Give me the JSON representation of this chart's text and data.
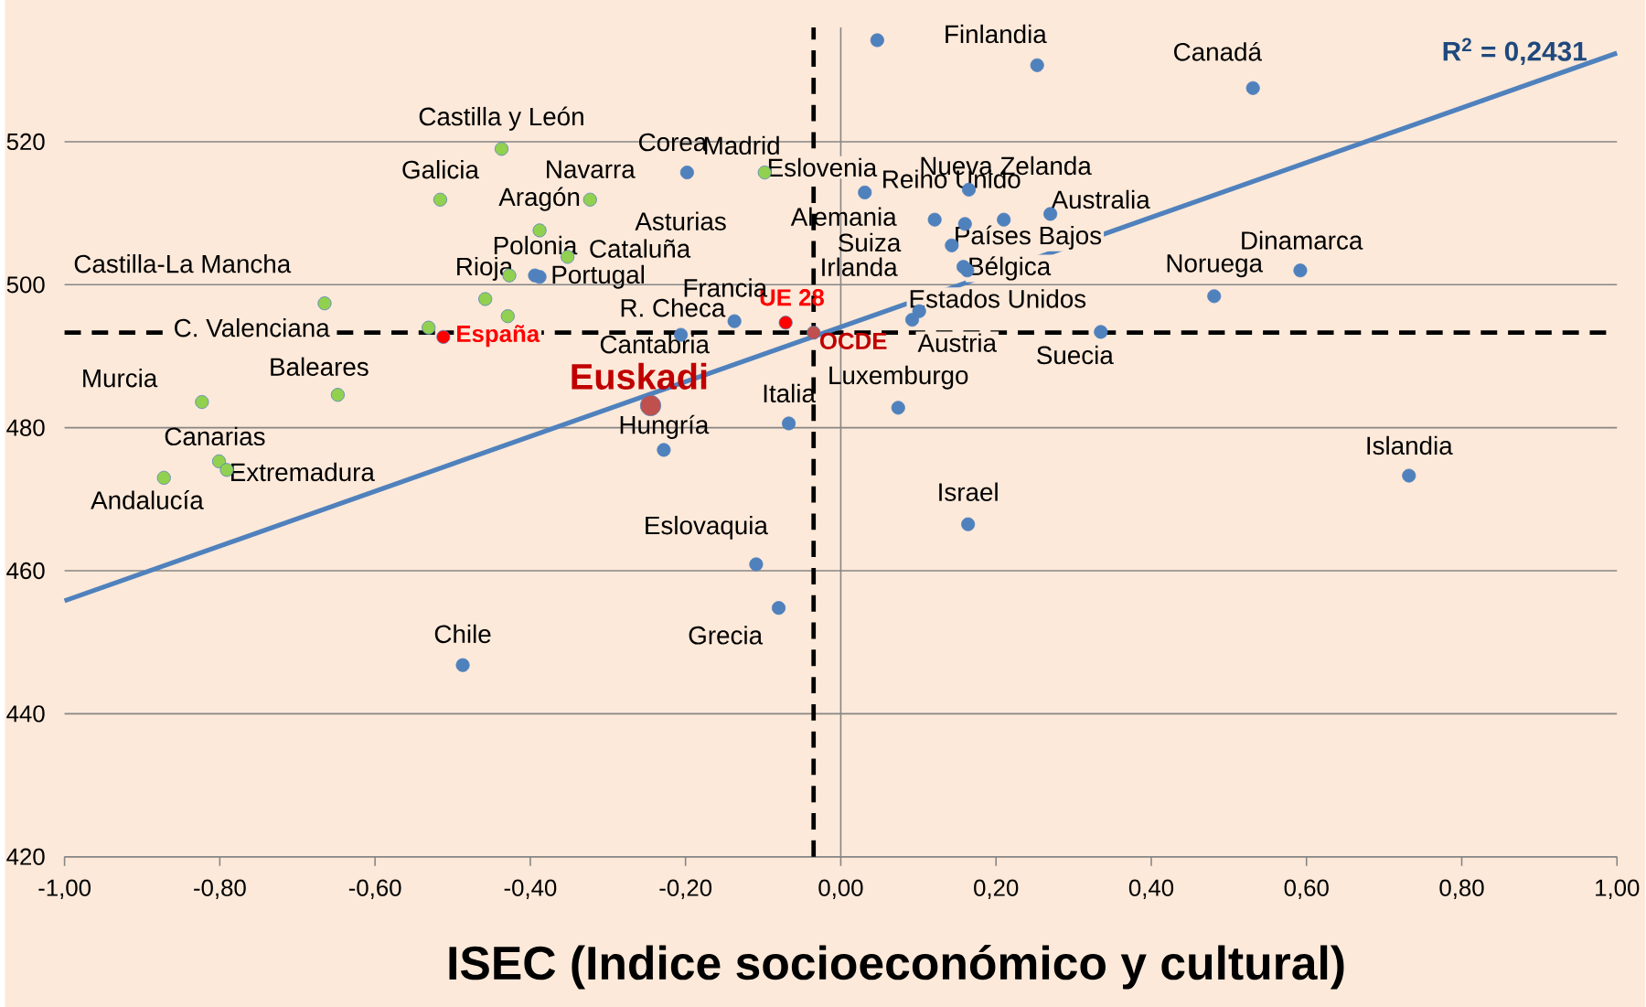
{
  "chart_data": {
    "type": "scatter",
    "xlabel": "ISEC (Indice socioeconómico y cultural)",
    "xlim": [
      -1,
      1
    ],
    "ylim": [
      420,
      536
    ],
    "xticks": [
      {
        "value": -1,
        "label": "-1,00"
      },
      {
        "value": -0.8,
        "label": "-0,80"
      },
      {
        "value": -0.6,
        "label": "-0,60"
      },
      {
        "value": -0.4,
        "label": "-0,40"
      },
      {
        "value": -0.2,
        "label": "-0,20"
      },
      {
        "value": 0,
        "label": "0,00"
      },
      {
        "value": 0.2,
        "label": "0,20"
      },
      {
        "value": 0.4,
        "label": "0,40"
      },
      {
        "value": 0.6,
        "label": "0,60"
      },
      {
        "value": 0.8,
        "label": "0,80"
      },
      {
        "value": 1,
        "label": "1,00"
      }
    ],
    "yticks": [
      420,
      440,
      460,
      480,
      500,
      520
    ],
    "grid": "y",
    "series": [
      {
        "marker": "circle",
        "color": "#4f81bd",
        "x": [
          0.047,
          0.253,
          0.531,
          -0.198,
          0.031,
          0.165,
          0.16,
          0.121,
          0.21,
          0.27,
          0.143,
          0.158,
          0.163,
          0.101,
          0.092,
          0.335,
          0.481,
          0.592,
          0.074,
          0.732,
          0.164,
          -0.067,
          -0.228,
          -0.109,
          -0.08,
          -0.487,
          -0.137,
          -0.206,
          -0.394,
          -0.388
        ],
        "values": [
          534.2,
          530.7,
          527.5,
          515.7,
          512.9,
          513.3,
          508.5,
          509.1,
          509.1,
          509.9,
          505.5,
          502.5,
          502.0,
          496.3,
          495.1,
          493.4,
          498.4,
          502.0,
          482.8,
          473.3,
          466.5,
          480.6,
          476.9,
          460.9,
          454.8,
          446.8,
          494.9,
          493.0,
          501.3,
          501.1
        ]
      },
      {
        "marker": "circle",
        "color": "#92d050",
        "x": [
          -0.437,
          -0.516,
          -0.323,
          -0.098,
          -0.388,
          -0.427,
          -0.352,
          -0.458,
          -0.665,
          -0.429,
          -0.531,
          -0.648,
          -0.823,
          -0.801,
          -0.791,
          -0.872
        ],
        "values": [
          519.0,
          511.9,
          511.9,
          515.7,
          507.6,
          501.3,
          503.9,
          498.0,
          497.4,
          495.6,
          494.0,
          484.6,
          483.6,
          475.3,
          474.1,
          473.0
        ]
      },
      {
        "marker": "circle",
        "colors": [
          "#ff0000",
          "#ff0000",
          "#c0504d"
        ],
        "x": [
          -0.512,
          -0.071,
          -0.035
        ],
        "values": [
          492.7,
          494.7,
          493.3
        ]
      },
      {
        "marker": "circle",
        "color": "#c0504d",
        "x": [
          -0.245
        ],
        "values": [
          483.1
        ]
      },
      {
        "type": "line",
        "marker": "none",
        "color": "#4f81bd",
        "x": [
          -1,
          1
        ],
        "values": [
          455.8,
          532.4
        ]
      }
    ],
    "ref_lines": [
      {
        "axis": "x",
        "value": 0,
        "color": "#868686"
      },
      {
        "axis": "x",
        "value": -0.035,
        "color": "#000000",
        "line_style": "dashed"
      },
      {
        "axis": "y",
        "value": 493.3,
        "color": "#000000",
        "line_style": "dashed"
      }
    ],
    "annotations": [
      {
        "text": "Castilla y León",
        "x": -0.437,
        "y": 519.0
      },
      {
        "text": "Galicia",
        "x": -0.516,
        "y": 511.9
      },
      {
        "text": "Navarra",
        "x": -0.323,
        "y": 511.9
      },
      {
        "text": "Madrid",
        "x": -0.098,
        "y": 515.7
      },
      {
        "text": "Aragón",
        "x": -0.388,
        "y": 507.6
      },
      "Asturias",
      {
        "text": "Cataluña",
        "x": -0.352,
        "y": 503.9
      },
      {
        "text": "Rioja",
        "x": -0.458,
        "y": 498.0
      },
      {
        "text": "Castilla-La Mancha",
        "x": -0.665,
        "y": 497.4
      },
      "Cantabria",
      "C. Valenciana",
      {
        "text": "Baleares",
        "x": -0.648,
        "y": 484.6
      },
      {
        "text": "Murcia",
        "x": -0.823,
        "y": 483.6
      },
      {
        "text": "Canarias",
        "x": -0.801,
        "y": 475.3
      },
      {
        "text": "Extremadura",
        "x": -0.791,
        "y": 474.1
      },
      {
        "text": "Andalucía",
        "x": -0.872,
        "y": 473.0
      },
      {
        "text": "España",
        "x": -0.512,
        "y": 492.7
      },
      {
        "text": "UE 28",
        "x": -0.071,
        "y": 494.7
      },
      {
        "text": "OCDE",
        "x": -0.035,
        "y": 493.3
      },
      {
        "text": "Euskadi",
        "x": -0.245,
        "y": 483.1
      },
      {
        "text": "Finlandia",
        "x": 0.253,
        "y": 530.7
      },
      {
        "text": "Canadá",
        "x": 0.531,
        "y": 527.5
      },
      {
        "text": "Corea",
        "x": -0.198,
        "y": 515.7
      },
      {
        "text": "Eslovenia",
        "x": 0.031,
        "y": 512.9
      },
      {
        "text": "Nueva Zelanda",
        "x": 0.165,
        "y": 513.3
      },
      {
        "text": "Reino Unido",
        "x": 0.16,
        "y": 508.5
      },
      {
        "text": "Alemania",
        "x": 0.121,
        "y": 509.1
      },
      {
        "text": "Países Bajos",
        "x": 0.21,
        "y": 509.1
      },
      {
        "text": "Australia",
        "x": 0.27,
        "y": 509.9
      },
      {
        "text": "Suiza",
        "x": 0.143,
        "y": 505.5
      },
      {
        "text": "Irlanda",
        "x": 0.158,
        "y": 502.5
      },
      {
        "text": "Bélgica",
        "x": 0.163,
        "y": 502.0
      },
      {
        "text": "Estados Unidos",
        "x": 0.101,
        "y": 496.3
      },
      {
        "text": "Austria",
        "x": 0.092,
        "y": 495.1
      },
      {
        "text": "Suecia",
        "x": 0.335,
        "y": 493.4
      },
      {
        "text": "Noruega",
        "x": 0.481,
        "y": 498.4
      },
      {
        "text": "Dinamarca",
        "x": 0.592,
        "y": 502.0
      },
      {
        "text": "Luxemburgo",
        "x": 0.074,
        "y": 482.8
      },
      {
        "text": "Islandia",
        "x": 0.732,
        "y": 473.3
      },
      {
        "text": "Israel",
        "x": 0.164,
        "y": 466.5
      },
      {
        "text": "Italia",
        "x": -0.067,
        "y": 480.6
      },
      {
        "text": "Hungría",
        "x": -0.228,
        "y": 476.9
      },
      {
        "text": "Eslovaquia",
        "x": -0.109,
        "y": 460.9
      },
      {
        "text": "Grecia",
        "x": -0.08,
        "y": 454.8
      },
      {
        "text": "Chile",
        "x": -0.487,
        "y": 446.8
      },
      {
        "text": "Francia",
        "x": -0.137,
        "y": 494.9
      },
      {
        "text": "R. Checa",
        "x": -0.206,
        "y": 493.0
      },
      {
        "text": "Polonia",
        "x": -0.394,
        "y": 501.3
      },
      {
        "text": "Portugal",
        "x": -0.388,
        "y": 501.1
      },
      "R$^{2}$ = 0,2431"
    ]
  }
}
